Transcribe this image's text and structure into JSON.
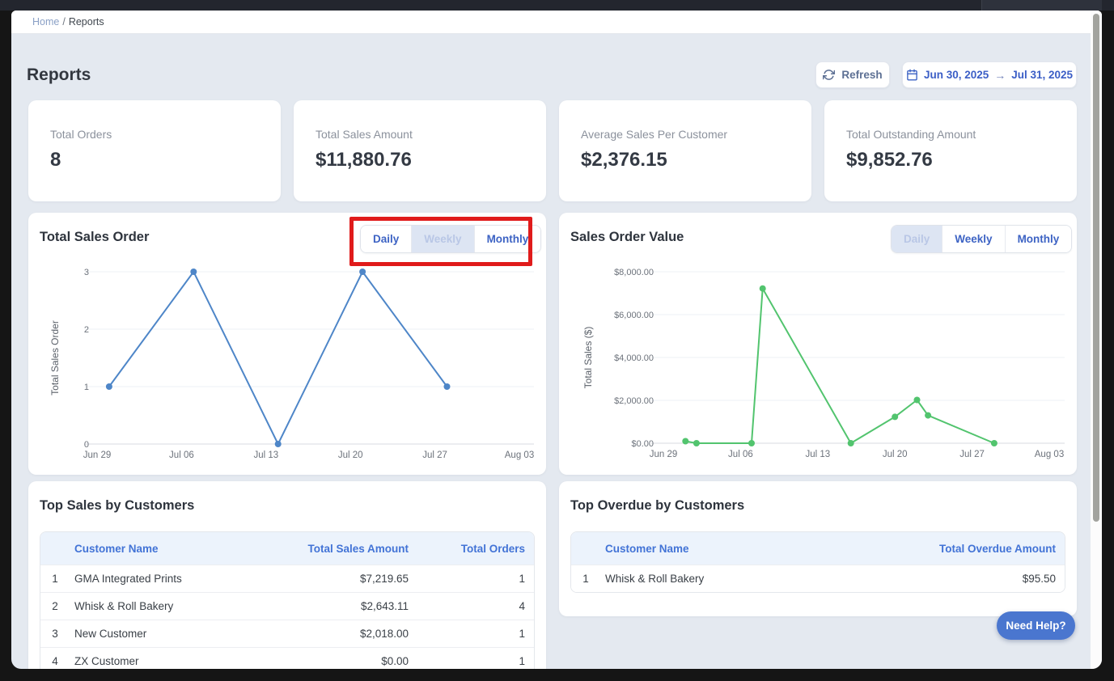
{
  "page": {
    "breadcrumb_home": "Home",
    "breadcrumb_separator": "/",
    "breadcrumb_current": "Reports",
    "title": "Reports"
  },
  "toolbar": {
    "refresh_label": "Refresh",
    "date_range": {
      "start": "Jun 30, 2025",
      "arrow": "→",
      "end": "Jul 31, 2025"
    }
  },
  "stat_cards": [
    {
      "label": "Total Orders",
      "value": "8"
    },
    {
      "label": "Total Sales Amount",
      "value": "$11,880.76"
    },
    {
      "label": "Average Sales Per Customer",
      "value": "$2,376.15"
    },
    {
      "label": "Total Outstanding Amount",
      "value": "$9,852.76"
    }
  ],
  "chart_data": [
    {
      "type": "line",
      "title": "Total Sales Order",
      "toggle": {
        "options": [
          "Daily",
          "Weekly",
          "Monthly"
        ],
        "active": "Weekly"
      },
      "ylabel": "Total Sales Order",
      "x_tick_labels": [
        "Jun 29",
        "Jul 06",
        "Jul 13",
        "Jul 20",
        "Jul 27",
        "Aug 03"
      ],
      "y_tick_labels": [
        "0",
        "1",
        "2",
        "3"
      ],
      "ylim": [
        0,
        3
      ],
      "x_span_days": 35,
      "grid": "horizontal",
      "legend": "none",
      "line_color": "#4e86c8",
      "points": [
        {
          "x_day": 1,
          "x_label": "Jun 30",
          "y": 1
        },
        {
          "x_day": 8,
          "x_label": "Jul 07",
          "y": 3
        },
        {
          "x_day": 15,
          "x_label": "Jul 14",
          "y": 0
        },
        {
          "x_day": 22,
          "x_label": "Jul 21",
          "y": 3
        },
        {
          "x_day": 29,
          "x_label": "Jul 28",
          "y": 1
        }
      ]
    },
    {
      "type": "line",
      "title": "Sales Order Value",
      "toggle": {
        "options": [
          "Daily",
          "Weekly",
          "Monthly"
        ],
        "active": "Daily"
      },
      "ylabel": "Total Sales ($)",
      "x_tick_labels": [
        "Jun 29",
        "Jul 06",
        "Jul 13",
        "Jul 20",
        "Jul 27",
        "Aug 03"
      ],
      "y_tick_labels": [
        "$0.00",
        "$2,000.00",
        "$4,000.00",
        "$6,000.00",
        "$8,000.00"
      ],
      "ylim": [
        0,
        8000
      ],
      "x_span_days": 35,
      "grid": "horizontal",
      "legend": "none",
      "line_color": "#52c46e",
      "points": [
        {
          "x_day": 2,
          "x_label": "Jul 01",
          "y": 95.5
        },
        {
          "x_day": 3,
          "x_label": "Jul 02",
          "y": 0
        },
        {
          "x_day": 8,
          "x_label": "Jul 07",
          "y": 0
        },
        {
          "x_day": 9,
          "x_label": "Jul 08",
          "y": 7219.65
        },
        {
          "x_day": 17,
          "x_label": "Jul 16",
          "y": 0
        },
        {
          "x_day": 21,
          "x_label": "Jul 20",
          "y": 1230
        },
        {
          "x_day": 23,
          "x_label": "Jul 22",
          "y": 2018
        },
        {
          "x_day": 24,
          "x_label": "Jul 23",
          "y": 1300
        },
        {
          "x_day": 30,
          "x_label": "Jul 29",
          "y": 0
        }
      ]
    }
  ],
  "tables": [
    {
      "title": "Top Sales by Customers",
      "headers": [
        "Customer Name",
        "Total Sales Amount",
        "Total Orders"
      ],
      "rows": [
        [
          "1",
          "GMA Integrated Prints",
          "$7,219.65",
          "1"
        ],
        [
          "2",
          "Whisk & Roll Bakery",
          "$2,643.11",
          "4"
        ],
        [
          "3",
          "New Customer",
          "$2,018.00",
          "1"
        ],
        [
          "4",
          "ZX Customer",
          "$0.00",
          "1"
        ]
      ]
    },
    {
      "title": "Top Overdue by Customers",
      "headers": [
        "Customer Name",
        "Total Overdue Amount"
      ],
      "rows": [
        [
          "1",
          "Whisk & Roll Bakery",
          "$95.50"
        ]
      ]
    }
  ],
  "help_button_label": "Need Help?",
  "annotation": {
    "type": "highlight-box",
    "color": "#e01b1b",
    "target": "total-sales-order-interval-toggle"
  },
  "colors": {
    "accent_blue": "#3d63c4",
    "line_blue": "#4e86c8",
    "line_green": "#52c46e",
    "annotation_red": "#e01b1b",
    "page_bg": "#e4e9f0",
    "table_header_bg": "#ecf3fc",
    "table_header_text": "#4273d6"
  }
}
